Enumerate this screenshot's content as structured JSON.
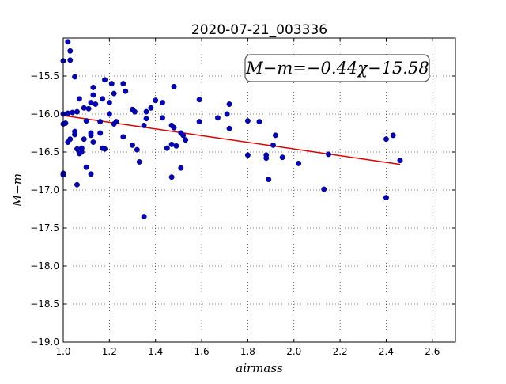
{
  "chart_data": {
    "type": "scatter",
    "title": "2020-07-21_003336",
    "xlabel": "airmass",
    "ylabel": "M−m",
    "xlim": [
      1.0,
      2.7
    ],
    "ylim": [
      -19.0,
      -15.0
    ],
    "y_inverted": true,
    "grid": true,
    "grid_style": "dotted",
    "x_ticks": [
      1.0,
      1.2,
      1.4,
      1.6,
      1.8,
      2.0,
      2.2,
      2.4,
      2.6
    ],
    "x_tick_labels": [
      "1.0",
      "1.2",
      "1.4",
      "1.6",
      "1.8",
      "2.0",
      "2.2",
      "2.4",
      "2.6"
    ],
    "y_ticks": [
      -15.5,
      -16.0,
      -16.5,
      -17.0,
      -17.5,
      -18.0,
      -18.5,
      -19.0
    ],
    "y_tick_labels": [
      "−15.5",
      "−16.0",
      "−16.5",
      "−17.0",
      "−17.5",
      "−18.0",
      "−18.5",
      "−19.0"
    ],
    "annotation": "M−m=−0.44χ−15.58",
    "point_color": "#0000cc",
    "fit_color": "#dd0000",
    "fit": {
      "slope": -0.44,
      "intercept": -15.58,
      "x_range": [
        1.0,
        2.46
      ]
    },
    "points": [
      [
        1.0,
        -15.3
      ],
      [
        1.02,
        -15.05
      ],
      [
        1.03,
        -15.17
      ],
      [
        1.03,
        -15.29
      ],
      [
        1.05,
        -15.51
      ],
      [
        1.0,
        -16.0
      ],
      [
        1.01,
        -16.12
      ],
      [
        1.02,
        -15.99
      ],
      [
        1.0,
        -16.13
      ],
      [
        1.04,
        -15.98
      ],
      [
        1.06,
        -15.97
      ],
      [
        1.07,
        -15.8
      ],
      [
        1.09,
        -15.92
      ],
      [
        1.11,
        -15.93
      ],
      [
        1.12,
        -15.85
      ],
      [
        1.13,
        -15.75
      ],
      [
        1.13,
        -15.65
      ],
      [
        1.14,
        -15.87
      ],
      [
        1.17,
        -15.8
      ],
      [
        1.18,
        -15.55
      ],
      [
        1.2,
        -15.85
      ],
      [
        1.21,
        -15.6
      ],
      [
        1.22,
        -15.73
      ],
      [
        1.26,
        -15.6
      ],
      [
        1.27,
        -15.7
      ],
      [
        1.03,
        -16.33
      ],
      [
        1.02,
        -16.37
      ],
      [
        1.05,
        -16.27
      ],
      [
        1.05,
        -16.23
      ],
      [
        1.06,
        -16.46
      ],
      [
        1.07,
        -16.52
      ],
      [
        1.08,
        -16.45
      ],
      [
        1.08,
        -16.5
      ],
      [
        1.09,
        -16.33
      ],
      [
        1.1,
        -16.09
      ],
      [
        1.12,
        -16.28
      ],
      [
        1.12,
        -16.25
      ],
      [
        1.13,
        -16.37
      ],
      [
        1.16,
        -16.1
      ],
      [
        1.16,
        -16.25
      ],
      [
        1.17,
        -16.45
      ],
      [
        1.18,
        -16.46
      ],
      [
        1.2,
        -16.0
      ],
      [
        1.22,
        -16.13
      ],
      [
        1.23,
        -16.1
      ],
      [
        1.26,
        -16.3
      ],
      [
        1.0,
        -16.8
      ],
      [
        1.0,
        -16.78
      ],
      [
        1.06,
        -16.93
      ],
      [
        1.1,
        -16.7
      ],
      [
        1.12,
        -16.79
      ],
      [
        1.3,
        -15.94
      ],
      [
        1.31,
        -15.97
      ],
      [
        1.3,
        -16.41
      ],
      [
        1.32,
        -16.47
      ],
      [
        1.33,
        -16.63
      ],
      [
        1.35,
        -16.15
      ],
      [
        1.36,
        -16.06
      ],
      [
        1.36,
        -15.97
      ],
      [
        1.38,
        -15.92
      ],
      [
        1.4,
        -15.82
      ],
      [
        1.43,
        -15.85
      ],
      [
        1.43,
        -16.05
      ],
      [
        1.45,
        -16.45
      ],
      [
        1.47,
        -16.4
      ],
      [
        1.47,
        -16.15
      ],
      [
        1.48,
        -16.18
      ],
      [
        1.49,
        -16.42
      ],
      [
        1.48,
        -15.64
      ],
      [
        1.51,
        -16.25
      ],
      [
        1.52,
        -16.28
      ],
      [
        1.53,
        -16.34
      ],
      [
        1.47,
        -16.83
      ],
      [
        1.51,
        -16.71
      ],
      [
        1.35,
        -17.35
      ],
      [
        1.59,
        -15.81
      ],
      [
        1.59,
        -16.1
      ],
      [
        1.67,
        -16.05
      ],
      [
        1.71,
        -16.0
      ],
      [
        1.72,
        -15.87
      ],
      [
        1.72,
        -16.19
      ],
      [
        1.8,
        -16.09
      ],
      [
        1.8,
        -16.54
      ],
      [
        1.85,
        -16.1
      ],
      [
        1.88,
        -16.54
      ],
      [
        1.88,
        -16.58
      ],
      [
        1.89,
        -16.86
      ],
      [
        1.91,
        -16.41
      ],
      [
        1.92,
        -16.28
      ],
      [
        1.95,
        -16.57
      ],
      [
        2.02,
        -16.65
      ],
      [
        2.13,
        -16.99
      ],
      [
        2.15,
        -16.53
      ],
      [
        2.4,
        -16.33
      ],
      [
        2.4,
        -17.1
      ],
      [
        2.43,
        -16.28
      ],
      [
        2.46,
        -16.61
      ]
    ]
  }
}
